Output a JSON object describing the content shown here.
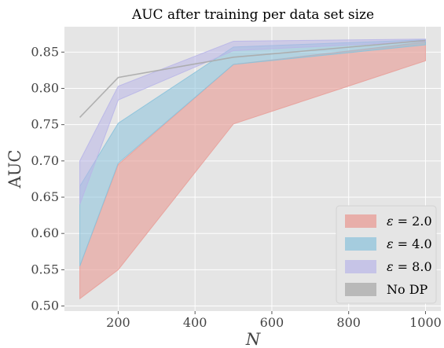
{
  "chart_data": {
    "type": "area",
    "title": "AUC after training per data set size",
    "xlabel": "N",
    "ylabel": "AUC",
    "xlim": [
      60,
      1040
    ],
    "ylim": [
      0.493,
      0.885
    ],
    "xticks": [
      200,
      400,
      600,
      800,
      1000
    ],
    "yticks": [
      0.5,
      0.55,
      0.6,
      0.65,
      0.7,
      0.75,
      0.8,
      0.85
    ],
    "x": [
      100,
      200,
      500,
      1000
    ],
    "grid": true,
    "legend_position": "lower-right",
    "series": [
      {
        "name": "ε = 2.0",
        "label_main": "ε",
        "label_rest": " = 2.0",
        "color": "#e8a09a",
        "opacity": 0.65,
        "upper": [
          0.555,
          0.695,
          0.833,
          0.864
        ],
        "lower": [
          0.51,
          0.55,
          0.751,
          0.838
        ]
      },
      {
        "name": "ε = 4.0",
        "label_main": "ε",
        "label_rest": " = 4.0",
        "color": "#8ac2dc",
        "opacity": 0.55,
        "upper": [
          0.665,
          0.752,
          0.857,
          0.867
        ],
        "lower": [
          0.555,
          0.697,
          0.833,
          0.86
        ]
      },
      {
        "name": "ε = 8.0",
        "label_main": "ε",
        "label_rest": " = 8.0",
        "color": "#b9b6e8",
        "opacity": 0.55,
        "upper": [
          0.7,
          0.803,
          0.865,
          0.868
        ],
        "lower": [
          0.64,
          0.784,
          0.852,
          0.865
        ]
      },
      {
        "name": "No DP",
        "label_main": "No DP",
        "label_rest": "",
        "color": "#aaaaaa",
        "opacity": 0.6,
        "line": [
          0.76,
          0.815,
          0.843,
          0.866
        ]
      }
    ]
  }
}
